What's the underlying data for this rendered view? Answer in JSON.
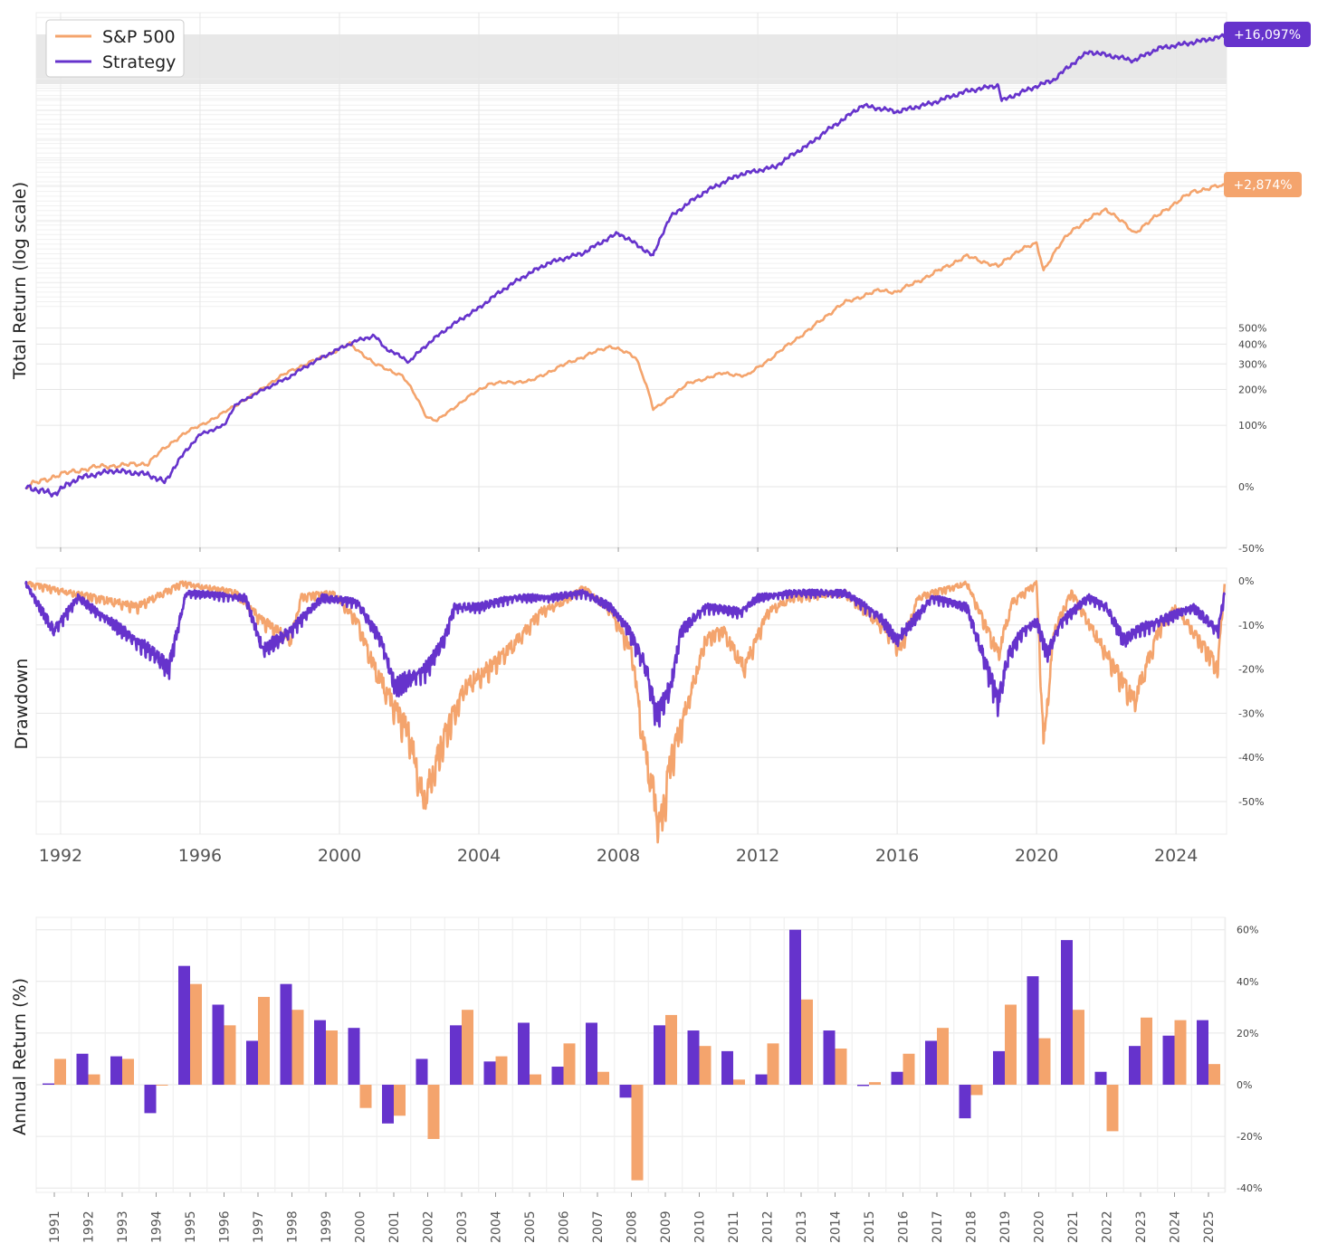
{
  "colors": {
    "sp500": "#F4A46D",
    "strategy": "#6633CC",
    "grid": "#e6e6e6",
    "band": "#e8e8e8"
  },
  "chart_data": [
    {
      "type": "line",
      "panel": "total_return",
      "ylabel": "Total Return (log scale)",
      "y_scale": "log",
      "y_ticks": [
        "500%",
        "400%",
        "300%",
        "200%",
        "100%",
        "0%",
        "-50%"
      ],
      "x_ticks": [
        "1992",
        "1996",
        "2000",
        "2004",
        "2008",
        "2012",
        "2016",
        "2020",
        "2024"
      ],
      "legend": {
        "placement": "top-left",
        "entries": [
          "S&P 500",
          "Strategy"
        ]
      },
      "end_labels": {
        "Strategy": "+16,097%",
        "S&P 500": "+2,874%"
      },
      "series": [
        {
          "name": "S&P 500",
          "x": [
            1991.0,
            1992.0,
            1993.0,
            1994.5,
            1995.5,
            1996.5,
            1997.5,
            1998.6,
            1999.5,
            2000.3,
            2001.0,
            2001.8,
            2002.5,
            2002.8,
            2003.5,
            2004.3,
            2005.5,
            2006.5,
            2007.8,
            2008.5,
            2009.0,
            2009.2,
            2010.0,
            2011.0,
            2011.7,
            2012.5,
            2013.5,
            2014.5,
            2015.5,
            2016.0,
            2017.0,
            2018.0,
            2018.9,
            2019.5,
            2020.0,
            2020.2,
            2021.0,
            2022.0,
            2022.8,
            2023.5,
            2024.5,
            2025.2,
            2025.4
          ],
          "values": [
            0,
            15,
            25,
            30,
            80,
            120,
            180,
            270,
            330,
            400,
            300,
            250,
            120,
            110,
            160,
            220,
            230,
            300,
            390,
            330,
            140,
            150,
            220,
            260,
            250,
            340,
            490,
            700,
            820,
            800,
            1000,
            1250,
            1100,
            1350,
            1450,
            1050,
            1700,
            2200,
            1650,
            2050,
            2700,
            2874,
            2874
          ]
        },
        {
          "name": "Strategy",
          "x": [
            1991.0,
            1991.8,
            1992.5,
            1993.5,
            1994.5,
            1995.0,
            1996.0,
            1996.7,
            1997.0,
            1998.5,
            1999.5,
            2000.5,
            2001.0,
            2001.3,
            2002.0,
            2003.0,
            2004.0,
            2005.0,
            2006.0,
            2007.0,
            2008.0,
            2009.0,
            2009.5,
            2010.5,
            2011.5,
            2012.5,
            2013.5,
            2014.5,
            2015.0,
            2016.0,
            2017.0,
            2018.0,
            2018.9,
            2019.0,
            2019.5,
            2020.5,
            2021.5,
            2022.0,
            2022.8,
            2023.5,
            2024.5,
            2025.4
          ],
          "values": [
            0,
            -8,
            10,
            20,
            15,
            5,
            80,
            100,
            150,
            240,
            330,
            420,
            450,
            380,
            310,
            480,
            650,
            900,
            1150,
            1300,
            1650,
            1250,
            2000,
            2700,
            3300,
            3600,
            4700,
            6300,
            7300,
            6800,
            7500,
            8600,
            9200,
            7700,
            8400,
            9800,
            13500,
            13000,
            12200,
            14000,
            15000,
            16097
          ]
        }
      ]
    },
    {
      "type": "area",
      "panel": "drawdown",
      "ylabel": "Drawdown",
      "y_ticks": [
        "0%",
        "-10%",
        "-20%",
        "-30%",
        "-40%",
        "-50%"
      ],
      "x_ticks": [
        "1992",
        "1996",
        "2000",
        "2004",
        "2008",
        "2012",
        "2016",
        "2020",
        "2024"
      ],
      "series": [
        {
          "name": "S&P 500",
          "x": [
            1991.0,
            1994.2,
            1994.7,
            1995.5,
            1997.0,
            1997.8,
            1998.6,
            1998.9,
            1999.8,
            2000.5,
            2001.0,
            2001.7,
            2002.0,
            2002.4,
            2002.7,
            2003.0,
            2003.6,
            2004.3,
            2005.0,
            2005.8,
            2006.4,
            2007.0,
            2007.8,
            2008.4,
            2008.7,
            2009.2,
            2009.5,
            2010.2,
            2010.5,
            2011.0,
            2011.6,
            2012.3,
            2013.0,
            2014.5,
            2015.7,
            2016.1,
            2016.6,
            2018.0,
            2018.9,
            2019.3,
            2020.0,
            2020.2,
            2020.5,
            2021.0,
            2022.0,
            2022.8,
            2023.5,
            2024.0,
            2025.2,
            2025.3,
            2025.4
          ],
          "values": [
            0,
            -5,
            -3,
            0,
            -2,
            -8,
            -12,
            -3,
            -2,
            -8,
            -18,
            -28,
            -32,
            -46,
            -40,
            -33,
            -22,
            -18,
            -13,
            -6,
            -4,
            -1,
            -6,
            -15,
            -33,
            -52,
            -38,
            -20,
            -12,
            -10,
            -18,
            -6,
            -3,
            -2,
            -10,
            -14,
            -3,
            0,
            -15,
            -4,
            0,
            -34,
            -10,
            -2,
            -15,
            -25,
            -10,
            -5,
            -18,
            -8,
            0
          ]
        },
        {
          "name": "Strategy",
          "x": [
            1991.0,
            1991.8,
            1992.5,
            1994.7,
            1995.1,
            1995.6,
            1997.3,
            1997.8,
            1998.6,
            1999.5,
            2000.5,
            2001.2,
            2001.6,
            2002.0,
            2002.5,
            2003.0,
            2003.3,
            2004.0,
            2005.0,
            2006.0,
            2007.0,
            2007.8,
            2008.3,
            2008.8,
            2009.1,
            2009.5,
            2009.8,
            2010.5,
            2011.5,
            2012.0,
            2013.0,
            2014.5,
            2015.5,
            2016.0,
            2017.0,
            2018.0,
            2018.9,
            2019.2,
            2019.6,
            2020.0,
            2020.3,
            2020.7,
            2021.5,
            2022.0,
            2022.5,
            2022.9,
            2023.5,
            2024.5,
            2025.2,
            2025.4
          ],
          "values": [
            0,
            -10,
            -3,
            -15,
            -18,
            -2,
            -3,
            -14,
            -10,
            -3,
            -4,
            -12,
            -22,
            -20,
            -18,
            -12,
            -5,
            -5,
            -3,
            -3,
            -2,
            -5,
            -10,
            -18,
            -28,
            -22,
            -10,
            -5,
            -6,
            -3,
            -2,
            -2,
            -7,
            -12,
            -3,
            -5,
            -25,
            -15,
            -10,
            -8,
            -15,
            -8,
            -3,
            -5,
            -12,
            -10,
            -8,
            -5,
            -10,
            -2
          ]
        }
      ]
    },
    {
      "type": "bar",
      "panel": "annual_return",
      "ylabel": "Annual Return (%)",
      "y_ticks": [
        "60%",
        "40%",
        "20%",
        "0%",
        "-20%",
        "-40%"
      ],
      "categories": [
        "1991",
        "1992",
        "1993",
        "1994",
        "1995",
        "1996",
        "1997",
        "1998",
        "1999",
        "2000",
        "2001",
        "2002",
        "2003",
        "2004",
        "2005",
        "2006",
        "2007",
        "2008",
        "2009",
        "2010",
        "2011",
        "2012",
        "2013",
        "2014",
        "2015",
        "2016",
        "2017",
        "2018",
        "2019",
        "2020",
        "2021",
        "2022",
        "2023",
        "2024",
        "2025"
      ],
      "series": [
        {
          "name": "Strategy",
          "values": [
            0.5,
            12,
            11,
            -11,
            46,
            31,
            17,
            39,
            25,
            22,
            -15,
            10,
            23,
            9,
            24,
            7,
            24,
            -5,
            23,
            21,
            13,
            4,
            60,
            21,
            -0.5,
            5,
            17,
            -13,
            13,
            42,
            56,
            5,
            15,
            19,
            25
          ]
        },
        {
          "name": "S&P 500",
          "values": [
            10,
            4,
            10,
            0,
            39,
            23,
            34,
            29,
            21,
            -9,
            -12,
            -21,
            29,
            11,
            4,
            16,
            5,
            -37,
            27,
            15,
            2,
            16,
            33,
            14,
            1,
            12,
            22,
            -4,
            31,
            18,
            29,
            -18,
            26,
            25,
            8
          ]
        }
      ]
    }
  ]
}
